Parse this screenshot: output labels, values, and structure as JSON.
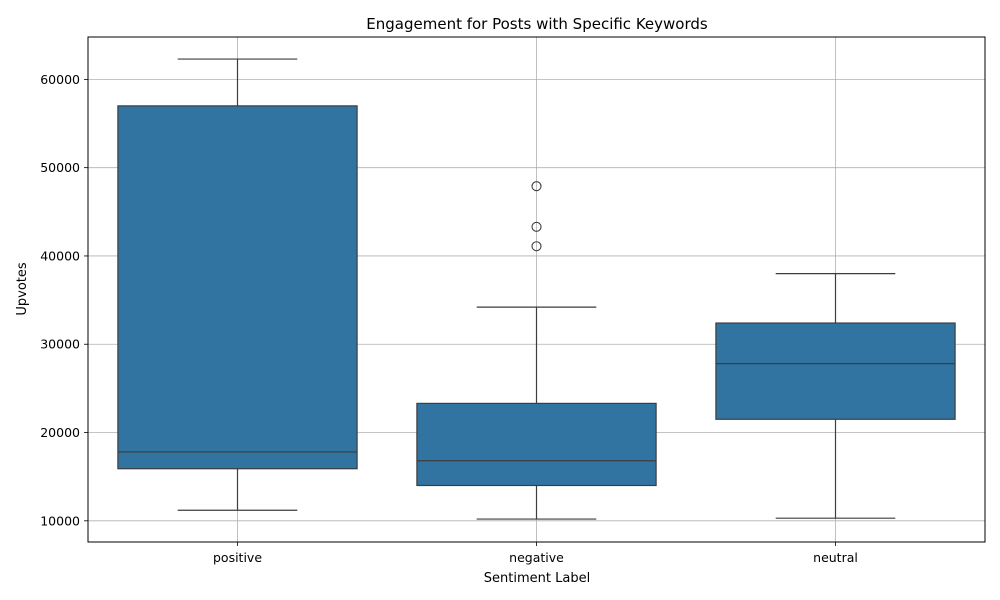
{
  "chart_data": {
    "type": "box",
    "title": "Engagement for Posts with Specific Keywords",
    "xlabel": "Sentiment Label",
    "ylabel": "Upvotes",
    "ylim": [
      7600,
      64800
    ],
    "yticks": [
      10000,
      20000,
      30000,
      40000,
      50000,
      60000
    ],
    "ytick_labels": [
      "10000",
      "20000",
      "30000",
      "40000",
      "50000",
      "60000"
    ],
    "grid": true,
    "box_color": "#3274a1",
    "edge_color": "#3d3d3d",
    "categories": [
      "positive",
      "negative",
      "neutral"
    ],
    "boxes": [
      {
        "category": "positive",
        "whisker_low": 11200,
        "q1": 15900,
        "median": 17800,
        "q3": 57000,
        "whisker_high": 62300,
        "outliers": []
      },
      {
        "category": "negative",
        "whisker_low": 10200,
        "q1": 14000,
        "median": 16800,
        "q3": 23300,
        "whisker_high": 34200,
        "outliers": [
          41100,
          43300,
          47900
        ]
      },
      {
        "category": "neutral",
        "whisker_low": 10300,
        "q1": 21500,
        "median": 27800,
        "q3": 32400,
        "whisker_high": 38000,
        "outliers": []
      }
    ]
  }
}
